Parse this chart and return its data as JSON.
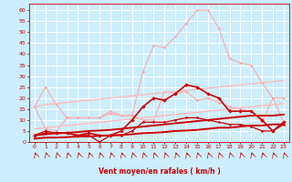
{
  "x": [
    0,
    1,
    2,
    3,
    4,
    5,
    6,
    7,
    8,
    9,
    10,
    11,
    12,
    13,
    14,
    15,
    16,
    17,
    18,
    19,
    20,
    21,
    22,
    23
  ],
  "series": [
    {
      "name": "light_pink_upper",
      "color": "#ffaaaa",
      "lw": 0.8,
      "marker": "D",
      "markersize": 1.5,
      "values": [
        16,
        25,
        17,
        11,
        11,
        11,
        11,
        14,
        12,
        12,
        32,
        44,
        43,
        48,
        54,
        60,
        60,
        52,
        38,
        36,
        35,
        27,
        20,
        20
      ]
    },
    {
      "name": "light_pink_lower",
      "color": "#ffaaaa",
      "lw": 0.8,
      "marker": "D",
      "markersize": 1.5,
      "values": [
        16,
        6,
        5,
        11,
        11,
        11,
        11,
        13,
        12,
        12,
        10,
        10,
        23,
        22,
        23,
        19,
        20,
        18,
        16,
        15,
        14,
        9,
        20,
        9
      ]
    },
    {
      "name": "pink_trend_upper",
      "color": "#ffbbbb",
      "lw": 1.0,
      "marker": null,
      "markersize": 0,
      "values": [
        16,
        17,
        17.5,
        18,
        18.5,
        19,
        19.5,
        20,
        20.5,
        21,
        21.5,
        22,
        22.5,
        23,
        23.5,
        24,
        24.5,
        25,
        25.5,
        26,
        26.5,
        27,
        27.5,
        28
      ]
    },
    {
      "name": "pink_trend_lower",
      "color": "#ffbbbb",
      "lw": 1.0,
      "marker": null,
      "markersize": 0,
      "values": [
        6,
        6.5,
        7,
        7.5,
        8,
        8.5,
        9,
        9.5,
        10,
        10.5,
        11,
        11.5,
        12,
        12.5,
        13,
        13.5,
        14,
        14.5,
        15,
        15.5,
        16,
        16.5,
        17,
        17.5
      ]
    },
    {
      "name": "dark_red_main",
      "color": "#cc0000",
      "lw": 1.2,
      "marker": "D",
      "markersize": 2.0,
      "values": [
        3,
        4,
        4,
        4,
        3,
        4,
        3,
        3,
        5,
        10,
        16,
        20,
        19,
        22,
        26,
        25,
        22,
        20,
        14,
        14,
        14,
        10,
        5,
        9
      ]
    },
    {
      "name": "dark_red_low",
      "color": "#cc0000",
      "lw": 0.9,
      "marker": "D",
      "markersize": 1.5,
      "values": [
        3,
        5,
        4,
        4,
        3,
        3,
        0,
        3,
        3,
        5,
        9,
        9,
        9,
        10,
        11,
        11,
        10,
        9,
        8,
        8,
        7,
        5,
        5,
        8
      ]
    },
    {
      "name": "dark_red_trend_upper",
      "color": "#cc0000",
      "lw": 1.4,
      "marker": null,
      "markersize": 0,
      "values": [
        3,
        3.5,
        4,
        4.2,
        4.5,
        5,
        5.2,
        5.5,
        6,
        6.5,
        7,
        7.5,
        8,
        8.5,
        9,
        9.5,
        10,
        10.5,
        11,
        11.5,
        12,
        12,
        12,
        12.5
      ]
    },
    {
      "name": "dark_red_trend_lower",
      "color": "#cc0000",
      "lw": 1.4,
      "marker": null,
      "markersize": 0,
      "values": [
        1.5,
        2,
        2,
        2.2,
        2.5,
        2.5,
        2.8,
        3,
        3.2,
        3.5,
        4,
        4.2,
        4.5,
        5,
        5.2,
        5.5,
        6,
        6.5,
        6.5,
        7,
        7.5,
        7.5,
        8,
        8
      ]
    }
  ],
  "xlim": [
    -0.5,
    23.5
  ],
  "ylim": [
    0,
    63
  ],
  "yticks": [
    0,
    5,
    10,
    15,
    20,
    25,
    30,
    35,
    40,
    45,
    50,
    55,
    60
  ],
  "xticks": [
    0,
    1,
    2,
    3,
    4,
    5,
    6,
    7,
    8,
    9,
    10,
    11,
    12,
    13,
    14,
    15,
    16,
    17,
    18,
    19,
    20,
    21,
    22,
    23
  ],
  "xlabel": "Vent moyen/en rafales ( km/h )",
  "bg_color": "#cceeff",
  "grid_color": "#ffffff",
  "text_color": "#cc0000",
  "tick_fontsize": 4.5,
  "label_fontsize": 5.5
}
